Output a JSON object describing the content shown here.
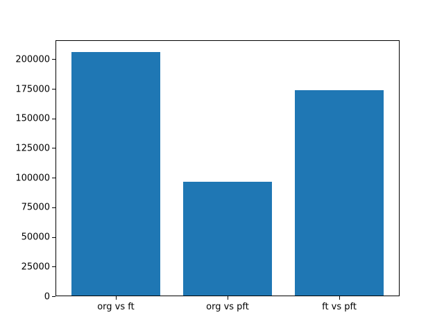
{
  "chart_data": {
    "type": "bar",
    "title": "",
    "xlabel": "",
    "ylabel": "",
    "categories": [
      "org vs ft",
      "org vs pft",
      "ft vs pft"
    ],
    "values": [
      205800,
      96300,
      173800
    ],
    "bar_color": "#1f77b4",
    "ylim": [
      0,
      216000
    ],
    "yticks": [
      0,
      25000,
      50000,
      75000,
      100000,
      125000,
      150000,
      175000,
      200000
    ],
    "ytick_labels": [
      "0",
      "25000",
      "50000",
      "75000",
      "100000",
      "125000",
      "150000",
      "175000",
      "200000"
    ],
    "grid": false,
    "legend": "none",
    "background_color": "#ffffff",
    "spine_color": "#000000"
  }
}
